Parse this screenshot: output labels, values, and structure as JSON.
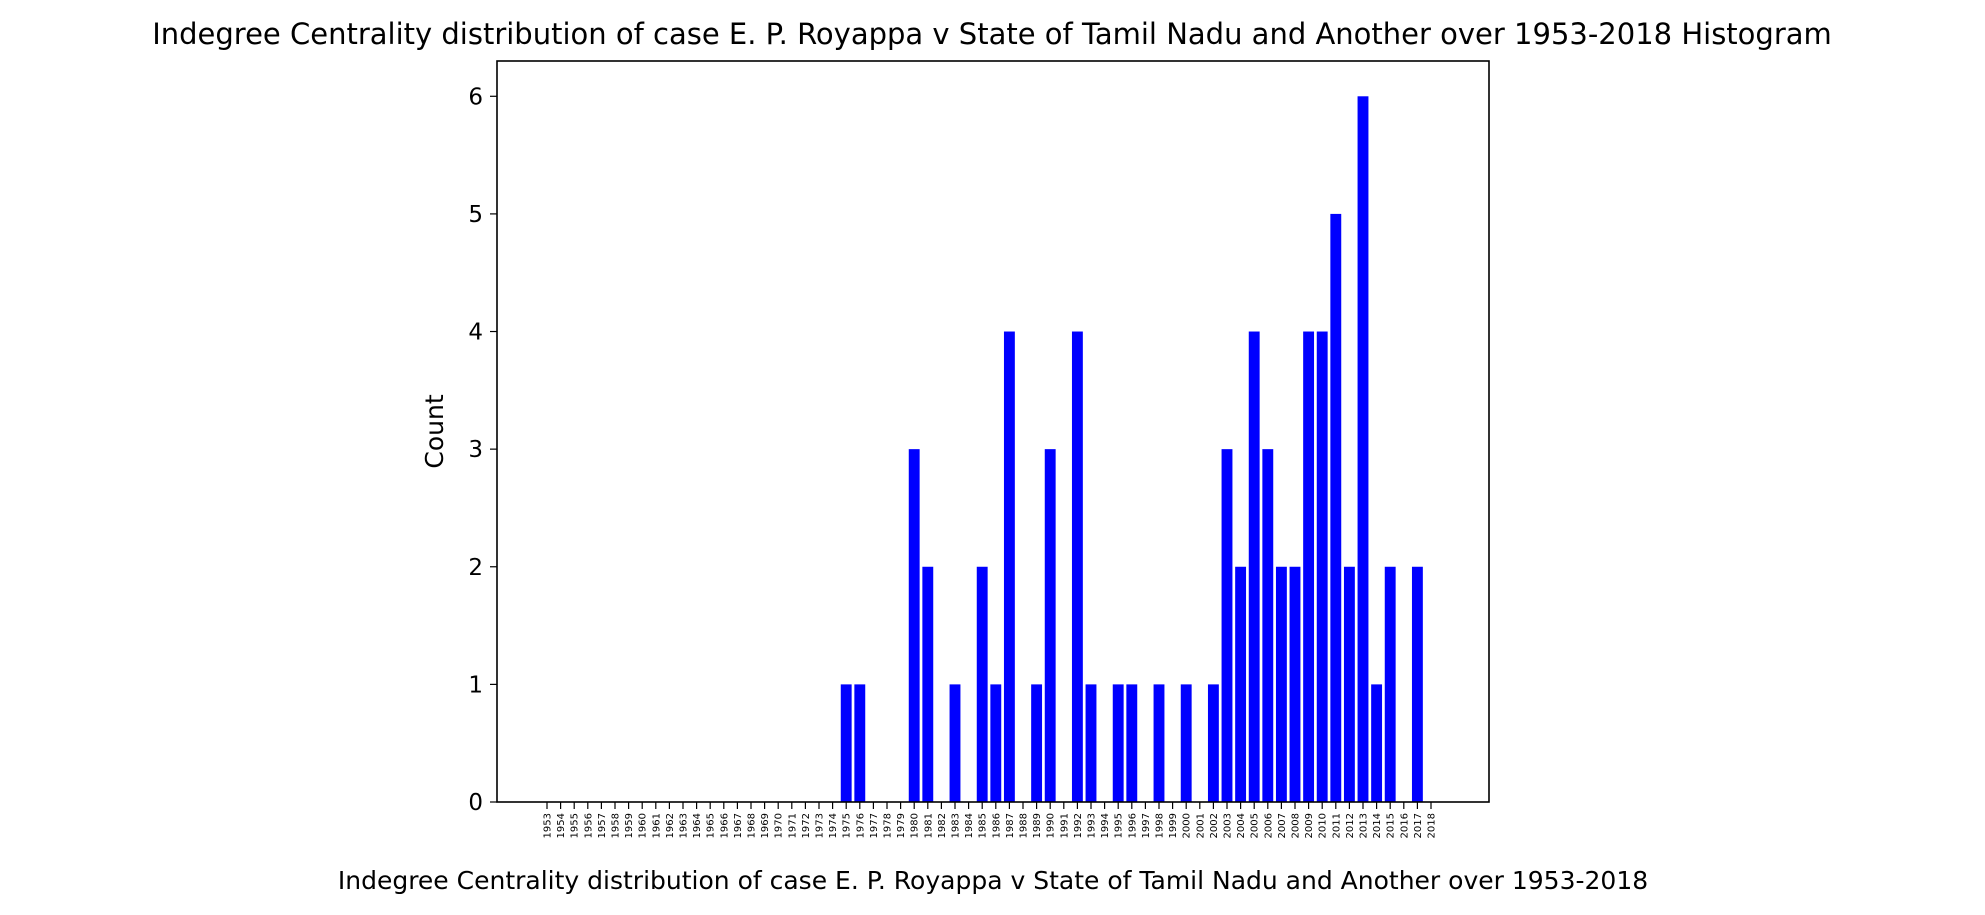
{
  "chart_data": {
    "type": "bar",
    "title": "Indegree Centrality distribution of case E. P. Royappa v State of Tamil Nadu and Another over 1953-2018 Histogram",
    "xlabel": "Indegree Centrality distribution of case E. P. Royappa v State of Tamil Nadu and Another over 1953-2018",
    "ylabel": "Count",
    "ylim": [
      0,
      6.3
    ],
    "yticks": [
      0,
      1,
      2,
      3,
      4,
      5,
      6
    ],
    "grid": false,
    "bar_color": "#0000ff",
    "categories": [
      "1953",
      "1954",
      "1955",
      "1956",
      "1957",
      "1958",
      "1959",
      "1960",
      "1961",
      "1962",
      "1963",
      "1964",
      "1965",
      "1966",
      "1967",
      "1968",
      "1969",
      "1970",
      "1971",
      "1972",
      "1973",
      "1974",
      "1975",
      "1976",
      "1977",
      "1978",
      "1979",
      "1980",
      "1981",
      "1982",
      "1983",
      "1984",
      "1985",
      "1986",
      "1987",
      "1988",
      "1989",
      "1990",
      "1991",
      "1992",
      "1993",
      "1994",
      "1995",
      "1996",
      "1997",
      "1998",
      "1999",
      "2000",
      "2001",
      "2002",
      "2003",
      "2004",
      "2005",
      "2006",
      "2007",
      "2008",
      "2009",
      "2010",
      "2011",
      "2012",
      "2013",
      "2014",
      "2015",
      "2016",
      "2017",
      "2018"
    ],
    "values": [
      0,
      0,
      0,
      0,
      0,
      0,
      0,
      0,
      0,
      0,
      0,
      0,
      0,
      0,
      0,
      0,
      0,
      0,
      0,
      0,
      0,
      0,
      1,
      1,
      0,
      0,
      0,
      3,
      2,
      0,
      1,
      0,
      2,
      1,
      4,
      0,
      1,
      3,
      0,
      4,
      1,
      0,
      1,
      1,
      0,
      1,
      0,
      1,
      0,
      1,
      3,
      2,
      4,
      3,
      2,
      2,
      4,
      4,
      5,
      2,
      6,
      1,
      2,
      0,
      2,
      0
    ]
  }
}
